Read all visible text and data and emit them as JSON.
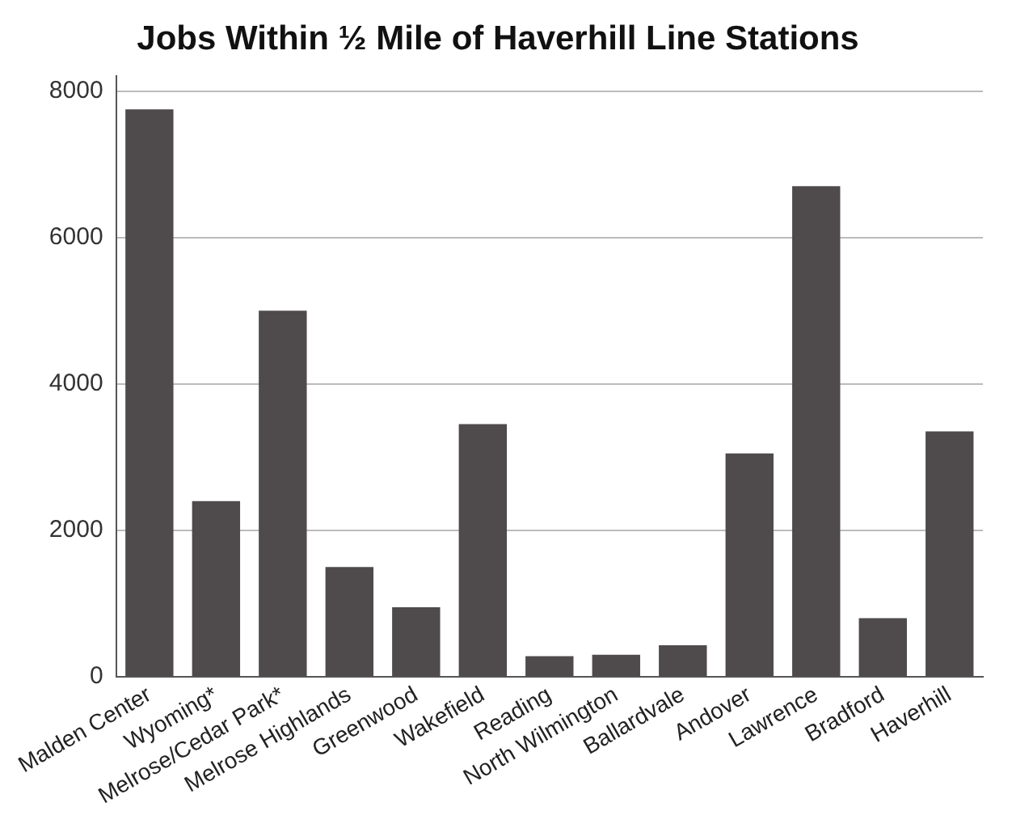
{
  "chart_data": {
    "type": "bar",
    "title": "Jobs Within ½ Mile of Haverhill Line Stations",
    "categories": [
      "Malden Center",
      "Wyoming*",
      "Melrose/Cedar Park*",
      "Melrose Highlands",
      "Greenwood",
      "Wakefield",
      "Reading",
      "North Wilmington",
      "Ballardvale",
      "Andover",
      "Lawrence",
      "Bradford",
      "Haverhill"
    ],
    "values": [
      7750,
      2400,
      5000,
      1500,
      950,
      3450,
      280,
      300,
      430,
      3050,
      6700,
      800,
      3350
    ],
    "color": "#4f4a4b",
    "ylim": [
      0,
      8200
    ],
    "yticks": [
      0,
      2000,
      4000,
      6000,
      8000
    ],
    "grid": "y",
    "legend": false
  }
}
